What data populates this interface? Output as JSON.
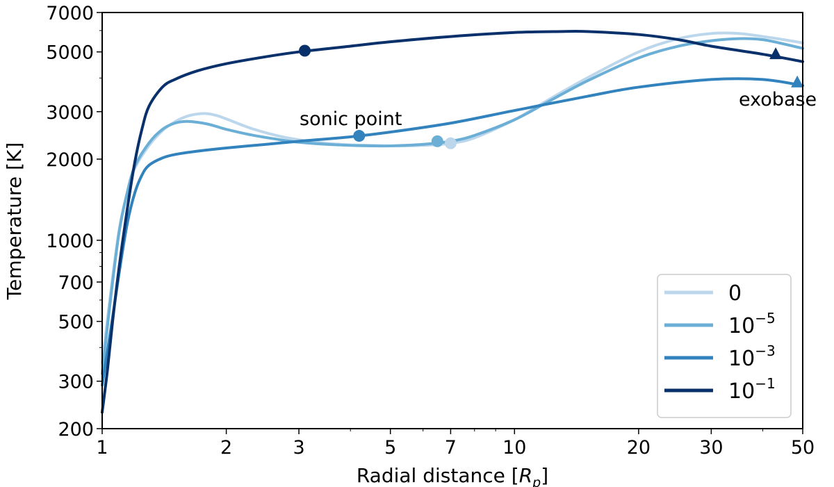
{
  "chart_data": {
    "type": "line",
    "xlabel": "Radial distance [R_p]",
    "xlabel_main": "Radial distance [",
    "xlabel_sym": "R",
    "xlabel_sub": "p",
    "xlabel_close": "]",
    "ylabel": "Temperature [K]",
    "xscale": "log",
    "yscale": "log",
    "xlim": [
      1,
      50
    ],
    "ylim": [
      200,
      7000
    ],
    "x_ticks": [
      1,
      2,
      3,
      5,
      7,
      10,
      20,
      30,
      50
    ],
    "x_tick_labels": [
      "1",
      "2",
      "3",
      "5",
      "7",
      "10",
      "20",
      "30",
      "50"
    ],
    "y_ticks": [
      200,
      300,
      500,
      700,
      1000,
      2000,
      3000,
      5000,
      7000
    ],
    "y_tick_labels": [
      "200",
      "300",
      "500",
      "700",
      "1000",
      "2000",
      "3000",
      "5000",
      "7000"
    ],
    "legend_position": "bottom-right",
    "grid": false,
    "annotations": [
      {
        "text": "sonic point",
        "x": 4.1,
        "y": 2900
      },
      {
        "text": "exobase",
        "x": 47,
        "y": 3350
      }
    ],
    "series": [
      {
        "name": "0",
        "legend_base": "0",
        "legend_exp": "",
        "color": "#bcd7ec",
        "x": [
          1,
          1.05,
          1.1,
          1.15,
          1.2,
          1.3,
          1.4,
          1.5,
          1.6,
          1.7,
          1.8,
          1.9,
          2,
          2.3,
          2.7,
          3,
          3.5,
          4,
          4.5,
          5,
          6,
          7,
          8,
          10,
          12,
          15,
          20,
          25,
          30,
          35,
          40,
          45,
          50
        ],
        "y": [
          350,
          650,
          1100,
          1500,
          1850,
          2250,
          2550,
          2750,
          2880,
          2940,
          2950,
          2900,
          2820,
          2600,
          2430,
          2360,
          2290,
          2260,
          2250,
          2240,
          2250,
          2290,
          2400,
          2800,
          3300,
          4000,
          5000,
          5600,
          5850,
          5850,
          5700,
          5550,
          5400
        ],
        "marker": {
          "shape": "circle",
          "x": 7.0,
          "y": 2290
        }
      },
      {
        "name": "10^-5",
        "legend_base": "10",
        "legend_exp": "−5",
        "color": "#6baed6",
        "x": [
          1,
          1.05,
          1.1,
          1.15,
          1.2,
          1.3,
          1.4,
          1.5,
          1.6,
          1.7,
          1.8,
          1.9,
          2,
          2.3,
          2.7,
          3,
          3.5,
          4,
          4.5,
          5,
          6,
          7,
          8,
          10,
          12,
          15,
          20,
          25,
          30,
          35,
          40,
          45,
          50
        ],
        "y": [
          320,
          620,
          1080,
          1500,
          1880,
          2300,
          2580,
          2720,
          2760,
          2740,
          2700,
          2640,
          2580,
          2460,
          2360,
          2310,
          2270,
          2250,
          2240,
          2240,
          2270,
          2330,
          2450,
          2800,
          3250,
          3900,
          4750,
          5250,
          5500,
          5600,
          5550,
          5350,
          5150
        ],
        "marker": {
          "shape": "circle",
          "x": 6.5,
          "y": 2330
        }
      },
      {
        "name": "10^-3",
        "legend_base": "10",
        "legend_exp": "−3",
        "color": "#3182bd",
        "x": [
          1,
          1.05,
          1.1,
          1.15,
          1.2,
          1.25,
          1.3,
          1.4,
          1.5,
          1.7,
          2,
          2.5,
          3,
          4,
          5,
          7,
          10,
          15,
          20,
          30,
          40,
          50
        ],
        "y": [
          290,
          470,
          760,
          1150,
          1500,
          1750,
          1900,
          2020,
          2080,
          2140,
          2200,
          2270,
          2330,
          2420,
          2520,
          2720,
          3030,
          3420,
          3700,
          3950,
          3950,
          3750
        ],
        "marker": {
          "shape": "circle",
          "x": 4.2,
          "y": 2440
        },
        "exobase": {
          "shape": "triangle",
          "x": 48.5,
          "y": 3850
        }
      },
      {
        "name": "10^-1",
        "legend_base": "10",
        "legend_exp": "−1",
        "color": "#08306b",
        "x": [
          1,
          1.03,
          1.06,
          1.1,
          1.15,
          1.2,
          1.25,
          1.3,
          1.4,
          1.5,
          1.7,
          2,
          2.5,
          3,
          4,
          5,
          7,
          10,
          13,
          15,
          20,
          25,
          30,
          40,
          50
        ],
        "y": [
          230,
          330,
          500,
          800,
          1300,
          1950,
          2600,
          3150,
          3700,
          3950,
          4250,
          4520,
          4800,
          5000,
          5250,
          5450,
          5700,
          5900,
          5950,
          5950,
          5800,
          5550,
          5250,
          4900,
          4600
        ],
        "marker": {
          "shape": "circle",
          "x": 3.1,
          "y": 5050
        },
        "exobase": {
          "shape": "triangle",
          "x": 43,
          "y": 4900
        }
      }
    ]
  }
}
